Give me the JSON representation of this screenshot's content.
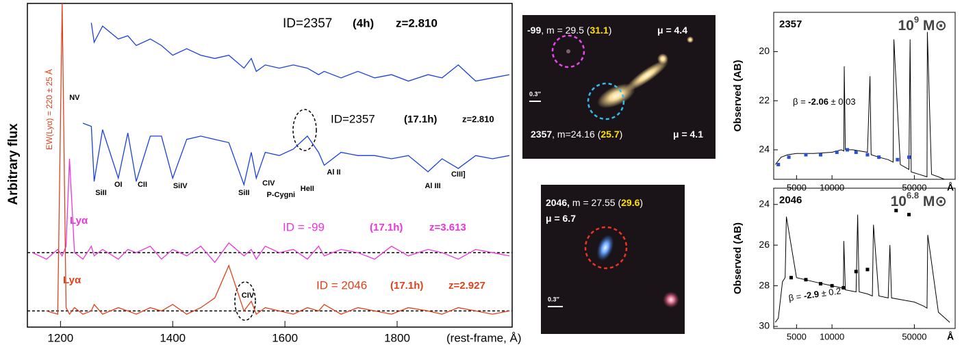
{
  "chart_data": [
    {
      "type": "line",
      "ylabel": "Arbitrary flux",
      "xlabel": "(rest-frame, Å)",
      "annotation": "EW(Lyα) = 220 ± 25 Å",
      "xlim": [
        1141,
        2005
      ],
      "ylim": [
        0,
        10
      ],
      "xticks": [
        1200,
        1400,
        1600,
        1800
      ],
      "hlines": [
        2.3,
        0.5
      ],
      "x": [
        1150,
        1175,
        1195,
        1203,
        1210,
        1216,
        1225,
        1240,
        1255,
        1260,
        1275,
        1303,
        1320,
        1335,
        1360,
        1380,
        1400,
        1425,
        1450,
        1475,
        1500,
        1527,
        1540,
        1549,
        1565,
        1590,
        1615,
        1640,
        1660,
        1670,
        1700,
        1730,
        1760,
        1790,
        1820,
        1855,
        1880,
        1909,
        1940,
        1970,
        2000
      ],
      "series": [
        {
          "name": "ID=2357",
          "exposure": "(4h)",
          "redshift": "z=2.810",
          "color": "#1a3fe0",
          "values": [
            null,
            null,
            null,
            null,
            null,
            null,
            null,
            null,
            9.4,
            8.8,
            9.3,
            8.9,
            9.0,
            8.7,
            8.9,
            8.7,
            8.4,
            8.6,
            8.4,
            8.3,
            8.4,
            8.0,
            8.3,
            7.9,
            8.1,
            8.0,
            8.1,
            8.0,
            7.8,
            7.9,
            7.7,
            7.9,
            7.7,
            7.8,
            7.6,
            7.8,
            7.7,
            8.1,
            7.6,
            7.7,
            7.8
          ]
        },
        {
          "name": "ID=2357",
          "exposure": "(17.1h)",
          "redshift": "z=2.810",
          "color": "#1a3fe0",
          "values": [
            null,
            null,
            null,
            null,
            null,
            null,
            null,
            6.3,
            6.2,
            4.5,
            6.1,
            4.6,
            6.0,
            4.5,
            5.9,
            5.9,
            4.6,
            5.8,
            5.9,
            5.8,
            5.7,
            4.4,
            5.4,
            4.6,
            5.4,
            5.3,
            5.5,
            5.9,
            5.4,
            5.0,
            5.4,
            5.3,
            5.3,
            5.2,
            5.3,
            4.8,
            5.2,
            4.9,
            5.3,
            5.2,
            5.3
          ]
        },
        {
          "name": "ID = -99",
          "exposure": "(17.1h)",
          "redshift": "z=3.613",
          "line_label": "Lyα",
          "color": "#ee33dd",
          "values": [
            2.3,
            2.1,
            2.4,
            2.2,
            2.5,
            5.2,
            2.3,
            2.1,
            2.5,
            2.2,
            2.4,
            2.1,
            2.4,
            2.3,
            2.5,
            2.1,
            2.4,
            2.2,
            2.5,
            2.0,
            2.6,
            2.2,
            2.4,
            2.1,
            2.5,
            2.3,
            2.4,
            2.1,
            2.5,
            2.2,
            2.4,
            2.3,
            2.1,
            2.5,
            2.2,
            2.4,
            2.3,
            2.1,
            2.4,
            2.3,
            2.2
          ]
        },
        {
          "name": "ID = 2046",
          "exposure": "(17.1h)",
          "redshift": "z=2.927",
          "line_label": "Lyα",
          "color": "#e0401a",
          "values": [
            null,
            0.5,
            0.4,
            10,
            0.6,
            0.4,
            0.6,
            0.4,
            0.5,
            0.7,
            0.4,
            0.6,
            0.5,
            0.4,
            0.6,
            0.5,
            0.7,
            0.4,
            0.6,
            0.9,
            1.9,
            0.5,
            0.8,
            0.4,
            0.6,
            0.5,
            0.4,
            0.6,
            0.5,
            0.7,
            0.4,
            0.6,
            0.5,
            0.4,
            0.6,
            0.5,
            0.4,
            0.6,
            0.5,
            0.4,
            0.5
          ]
        }
      ],
      "lines": [
        {
          "label": "NV",
          "x": 1225
        },
        {
          "label": "SiII",
          "x": 1260
        },
        {
          "label": "OI",
          "x": 1303
        },
        {
          "label": "CII",
          "x": 1335
        },
        {
          "label": "SiIV",
          "x": 1400
        },
        {
          "label": "SiII",
          "x": 1527
        },
        {
          "label": "CIV",
          "x": 1549
        },
        {
          "label": "P-Cygni",
          "x": 1549
        },
        {
          "label": "HeII",
          "x": 1640
        },
        {
          "label": "Al II",
          "x": 1670
        },
        {
          "label": "Al III",
          "x": 1855
        },
        {
          "label": "CIII]",
          "x": 1909
        },
        {
          "label": "CIV",
          "x": 1540
        }
      ]
    },
    {
      "type": "line",
      "title": "2357",
      "mass": {
        "base": "10",
        "exp": "9",
        "unit": " M⊙"
      },
      "beta": [
        {
          "text": "β = "
        },
        {
          "text": "-2.06",
          "bold": true
        },
        {
          "text": " ± 0.03"
        }
      ],
      "ylabel": "Observed (AB)",
      "xlabel": "Å",
      "xscale": "log",
      "xlim": [
        3200,
        111000
      ],
      "ylim": [
        25.2,
        18.4
      ],
      "xticks": [
        5000,
        10000,
        50000
      ],
      "yticks": [
        20,
        22,
        24
      ],
      "model": {
        "color": "#000000",
        "x": [
          3300,
          3700,
          4200,
          5000,
          7000,
          10000,
          12000,
          12600,
          12700,
          13000,
          15000,
          20000,
          21000,
          21500,
          25000,
          30000,
          33000,
          33500,
          38000,
          45000,
          46000,
          47000,
          55000,
          64000,
          64500,
          70000,
          80000,
          90000,
          100000
        ],
        "values": [
          24.6,
          24.3,
          24.2,
          24.15,
          24.15,
          24.1,
          24.0,
          24.05,
          20.6,
          24.0,
          24.0,
          24.1,
          21.0,
          24.2,
          24.3,
          24.4,
          24.5,
          19.5,
          24.6,
          24.8,
          19.5,
          24.9,
          25.0,
          25.1,
          19.2,
          25.0,
          25.1,
          25.2,
          25.2
        ]
      },
      "points": {
        "color": "#2a4fd0",
        "x": [
          3500,
          4300,
          6000,
          8000,
          11000,
          13500,
          16000,
          20000,
          25000,
          36000,
          45000
        ],
        "values": [
          24.6,
          24.3,
          24.2,
          24.2,
          24.1,
          24.0,
          24.1,
          24.2,
          24.3,
          24.4,
          24.3
        ]
      }
    },
    {
      "type": "line",
      "title": "2046",
      "mass": {
        "base": "10",
        "exp": "6.8",
        "unit": " M⊙"
      },
      "beta": [
        {
          "text": "β = "
        },
        {
          "text": "-2.9",
          "bold": true
        },
        {
          "text": " ± 0.2"
        }
      ],
      "ylabel": "Observed (AB)",
      "xlabel": "Å",
      "xscale": "log",
      "xlim": [
        3200,
        111000
      ],
      "ylim": [
        30.1,
        23.2
      ],
      "xticks": [
        5000,
        10000,
        50000
      ],
      "yticks": [
        24,
        26,
        28,
        30
      ],
      "model": {
        "color": "#000000",
        "x": [
          3300,
          3500,
          3800,
          4000,
          4100,
          5000,
          7000,
          10000,
          12000,
          12500,
          12600,
          13000,
          16000,
          16500,
          17000,
          20000,
          22000,
          22500,
          25000,
          30000,
          31000,
          32000,
          40000,
          50000,
          60000,
          64000,
          65000,
          80000,
          100000
        ],
        "values": [
          29.8,
          29.6,
          27.8,
          27.6,
          24.6,
          27.6,
          27.8,
          28.0,
          28.1,
          28.1,
          25.8,
          28.2,
          28.3,
          24.5,
          28.3,
          28.4,
          28.5,
          25.0,
          28.5,
          28.6,
          26.0,
          28.6,
          28.7,
          28.8,
          29.0,
          29.1,
          25.5,
          29.3,
          29.8
        ]
      },
      "points": {
        "color": "#000000",
        "x": [
          4500,
          6000,
          8000,
          10000,
          12500,
          16000,
          20000,
          35000,
          45000
        ],
        "values": [
          27.6,
          27.7,
          27.9,
          28.0,
          28.1,
          27.3,
          27.2,
          24.3,
          24.5
        ]
      }
    }
  ],
  "images": [
    {
      "scale": "0.3″",
      "captions": [
        {
          "parts": [
            {
              "text": "-99",
              "bold": true
            },
            {
              "text": ", m = 29.5 ("
            },
            {
              "text": "31.1",
              "color": "#ffe000",
              "bold": true
            },
            {
              "text": ")"
            }
          ]
        },
        {
          "parts": [
            {
              "text": "μ = 4.4",
              "bold": true
            }
          ]
        },
        {
          "parts": [
            {
              "text": "2357",
              "bold": true
            },
            {
              "text": ", m=24.16 ("
            },
            {
              "text": "25.7",
              "color": "#ffe000",
              "bold": true
            },
            {
              "text": ")"
            }
          ]
        },
        {
          "parts": [
            {
              "text": "μ = 4.1",
              "bold": true
            }
          ]
        }
      ]
    },
    {
      "scale": "0.3″",
      "captions": [
        {
          "parts": [
            {
              "text": "2046,",
              "bold": true
            },
            {
              "text": " m = 27.55 ("
            },
            {
              "text": "29.6",
              "color": "#ffe000",
              "bold": true
            },
            {
              "text": ")"
            }
          ]
        },
        {
          "parts": [
            {
              "text": "μ = 6.7",
              "bold": true
            }
          ]
        }
      ]
    }
  ]
}
